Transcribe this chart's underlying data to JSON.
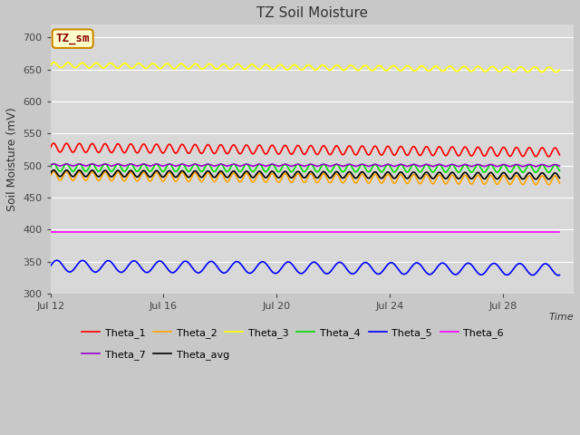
{
  "title": "TZ Soil Moisture",
  "ylabel": "Soil Moisture (mV)",
  "xlabel": "Time",
  "annotation": "TZ_sm",
  "ylim": [
    300,
    720
  ],
  "yticks": [
    300,
    350,
    400,
    450,
    500,
    550,
    600,
    650,
    700
  ],
  "xtick_positions": [
    0,
    4,
    8,
    12,
    16
  ],
  "xtick_labels": [
    "Jul 12",
    "Jul 16",
    "Jul 20",
    "Jul 24",
    "Jul 28"
  ],
  "xlim": [
    0,
    18.5
  ],
  "bg_color": "#d8d8d8",
  "fig_color": "#d0d0d0",
  "series": [
    {
      "name": "Theta_1",
      "color": "#ff0000",
      "base": 528,
      "amp": 7,
      "freq": 2.2,
      "trend": -0.4
    },
    {
      "name": "Theta_2",
      "color": "#ffa500",
      "base": 484,
      "amp": 7,
      "freq": 2.2,
      "trend": -0.4
    },
    {
      "name": "Theta_3",
      "color": "#ffff00",
      "base": 657,
      "amp": 4,
      "freq": 2.0,
      "trend": -0.4
    },
    {
      "name": "Theta_4",
      "color": "#00dd00",
      "base": 497,
      "amp": 6,
      "freq": 2.2,
      "trend": -0.1
    },
    {
      "name": "Theta_5",
      "color": "#0000ff",
      "base": 343,
      "amp": 9,
      "freq": 1.1,
      "trend": -0.3
    },
    {
      "name": "Theta_6",
      "color": "#ff00ff",
      "base": 396,
      "amp": 0.3,
      "freq": 0,
      "trend": 0.0
    },
    {
      "name": "Theta_7",
      "color": "#9900cc",
      "base": 501,
      "amp": 1.5,
      "freq": 2.2,
      "trend": -0.05
    },
    {
      "name": "Theta_avg",
      "color": "#000000",
      "base": 488,
      "amp": 5,
      "freq": 2.2,
      "trend": -0.25
    }
  ],
  "legend1": [
    "Theta_1",
    "Theta_2",
    "Theta_3",
    "Theta_4",
    "Theta_5",
    "Theta_6"
  ],
  "legend2": [
    "Theta_7",
    "Theta_avg"
  ]
}
